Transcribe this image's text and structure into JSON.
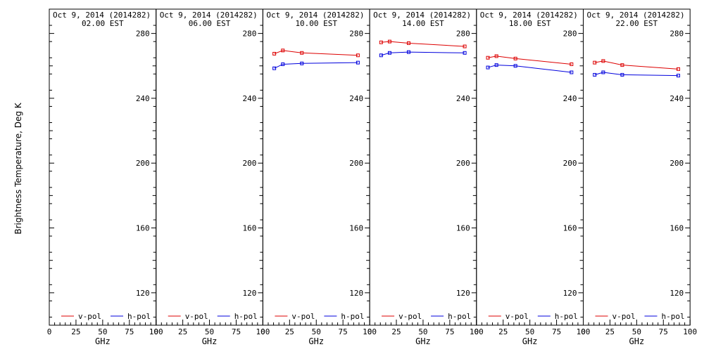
{
  "chart_data": {
    "type": "line",
    "ylabel": "Brightness Temperature, Deg K",
    "xlabel": "GHz",
    "xlim": [
      0,
      100
    ],
    "ylim": [
      100,
      295
    ],
    "x_ticks": [
      0,
      25,
      50,
      75,
      100
    ],
    "y_ticks": [
      120,
      160,
      200,
      240,
      280
    ],
    "legend_position": "bottom",
    "series_styles": [
      {
        "name": "v-pol",
        "color": "#dd0000"
      },
      {
        "name": "h-pol",
        "color": "#0000dd"
      }
    ],
    "panels": [
      {
        "title_line1": "Oct  9, 2014 (2014282)",
        "title_line2": "02.00 EST",
        "series": []
      },
      {
        "title_line1": "Oct  9, 2014 (2014282)",
        "title_line2": "06.00 EST",
        "series": []
      },
      {
        "title_line1": "Oct  9, 2014 (2014282)",
        "title_line2": "10.00 EST",
        "series": [
          {
            "name": "v-pol",
            "x": [
              10.7,
              18.7,
              36.5,
              89.0
            ],
            "y": [
              267.5,
              269.5,
              268.0,
              266.5
            ]
          },
          {
            "name": "h-pol",
            "x": [
              10.7,
              18.7,
              36.5,
              89.0
            ],
            "y": [
              258.5,
              261.0,
              261.5,
              262.0
            ]
          }
        ]
      },
      {
        "title_line1": "Oct  9, 2014 (2014282)",
        "title_line2": "14.00 EST",
        "series": [
          {
            "name": "v-pol",
            "x": [
              10.7,
              18.7,
              36.5,
              89.0
            ],
            "y": [
              274.5,
              275.0,
              274.0,
              272.0
            ]
          },
          {
            "name": "h-pol",
            "x": [
              10.7,
              18.7,
              36.5,
              89.0
            ],
            "y": [
              266.5,
              268.0,
              268.5,
              268.0
            ]
          }
        ]
      },
      {
        "title_line1": "Oct  9, 2014 (2014282)",
        "title_line2": "18.00 EST",
        "series": [
          {
            "name": "v-pol",
            "x": [
              10.7,
              18.7,
              36.5,
              89.0
            ],
            "y": [
              265.0,
              266.0,
              264.5,
              261.0
            ]
          },
          {
            "name": "h-pol",
            "x": [
              10.7,
              18.7,
              36.5,
              89.0
            ],
            "y": [
              259.0,
              260.5,
              260.0,
              256.0
            ]
          }
        ]
      },
      {
        "title_line1": "Oct  9, 2014 (2014282)",
        "title_line2": "22.00 EST",
        "series": [
          {
            "name": "v-pol",
            "x": [
              10.7,
              18.7,
              36.5,
              89.0
            ],
            "y": [
              262.0,
              263.0,
              260.5,
              258.0
            ]
          },
          {
            "name": "h-pol",
            "x": [
              10.7,
              18.7,
              36.5,
              89.0
            ],
            "y": [
              254.5,
              256.0,
              254.5,
              254.0
            ]
          }
        ]
      }
    ]
  }
}
